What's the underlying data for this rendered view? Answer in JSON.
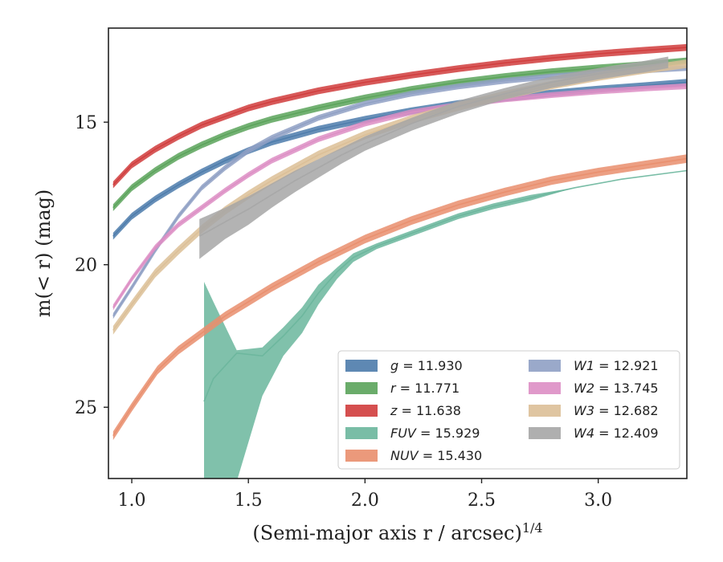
{
  "chart_data": {
    "type": "line",
    "title": "",
    "xlabel": "(Semi-major axis r / arcsec)^{1/4}",
    "ylabel": "m(< r) (mag)",
    "xlim": [
      0.9,
      3.38
    ],
    "ylim": [
      27.5,
      11.7
    ],
    "y_inverted": true,
    "x_ticks": [
      1.0,
      1.5,
      2.0,
      2.5,
      3.0
    ],
    "x_tick_labels": [
      "1.0",
      "1.5",
      "2.0",
      "2.5",
      "3.0"
    ],
    "y_ticks": [
      15,
      20,
      25
    ],
    "y_tick_labels": [
      "15",
      "20",
      "25"
    ],
    "grid": false,
    "legend_position": "lower-right",
    "series": [
      {
        "name": "g = 11.930",
        "label_var": "g",
        "label_val": "= 11.930",
        "color": "#4c7bab",
        "x": [
          0.92,
          1.0,
          1.1,
          1.2,
          1.3,
          1.4,
          1.5,
          1.6,
          1.8,
          2.0,
          2.2,
          2.4,
          2.6,
          2.8,
          3.0,
          3.2,
          3.38
        ],
        "y": [
          19.0,
          18.3,
          17.7,
          17.2,
          16.75,
          16.35,
          16.0,
          15.7,
          15.25,
          14.9,
          14.6,
          14.35,
          14.15,
          13.98,
          13.84,
          13.72,
          13.6
        ],
        "band": 0.12
      },
      {
        "name": "r = 11.771",
        "label_var": "r",
        "label_val": "= 11.771",
        "color": "#5aa35a",
        "x": [
          0.92,
          1.0,
          1.1,
          1.2,
          1.3,
          1.4,
          1.5,
          1.6,
          1.8,
          2.0,
          2.2,
          2.4,
          2.6,
          2.8,
          3.0,
          3.2,
          3.38
        ],
        "y": [
          18.0,
          17.3,
          16.7,
          16.2,
          15.8,
          15.45,
          15.15,
          14.9,
          14.5,
          14.15,
          13.85,
          13.6,
          13.4,
          13.23,
          13.1,
          12.98,
          12.85
        ],
        "band": 0.12
      },
      {
        "name": "z = 11.638",
        "label_var": "z",
        "label_val": "= 11.638",
        "color": "#d03c3c",
        "x": [
          0.92,
          1.0,
          1.1,
          1.2,
          1.3,
          1.4,
          1.5,
          1.6,
          1.8,
          2.0,
          2.2,
          2.4,
          2.6,
          2.8,
          3.0,
          3.2,
          3.38
        ],
        "y": [
          17.2,
          16.5,
          15.95,
          15.5,
          15.1,
          14.8,
          14.5,
          14.28,
          13.9,
          13.6,
          13.35,
          13.12,
          12.92,
          12.75,
          12.6,
          12.48,
          12.38
        ],
        "band": 0.12
      },
      {
        "name": "FUV = 15.929",
        "label_var": "FUV",
        "label_val": "= 15.929",
        "color": "#6ab69c",
        "x": [
          1.31,
          1.35,
          1.45,
          1.56,
          1.65,
          1.73,
          1.8,
          1.88,
          1.95,
          2.05,
          2.2,
          2.4,
          2.55,
          2.71,
          2.9,
          3.1,
          3.38
        ],
        "y": [
          24.8,
          24.0,
          23.1,
          23.2,
          22.5,
          21.8,
          21.0,
          20.25,
          19.75,
          19.35,
          18.9,
          18.3,
          17.95,
          17.65,
          17.3,
          17.0,
          16.7
        ],
        "band_upper": [
          20.6,
          21.3,
          23.0,
          22.9,
          22.2,
          21.5,
          20.7,
          20.1,
          19.6,
          19.25,
          18.8,
          18.2,
          17.85,
          17.55,
          17.3,
          17.0,
          16.7
        ],
        "band_lower": [
          27.6,
          27.6,
          27.6,
          24.6,
          23.2,
          22.4,
          21.4,
          20.5,
          19.9,
          19.45,
          19.0,
          18.4,
          18.05,
          17.75,
          17.3,
          17.0,
          16.7
        ]
      },
      {
        "name": "NUV = 15.430",
        "label_var": "NUV",
        "label_val": "= 15.430",
        "color": "#e98e6d",
        "x": [
          0.92,
          1.0,
          1.11,
          1.2,
          1.3,
          1.4,
          1.5,
          1.6,
          1.8,
          2.0,
          2.2,
          2.4,
          2.6,
          2.8,
          3.0,
          3.2,
          3.38
        ],
        "y": [
          26.0,
          25.0,
          23.7,
          23.0,
          22.4,
          21.8,
          21.3,
          20.8,
          19.9,
          19.1,
          18.45,
          17.9,
          17.45,
          17.05,
          16.75,
          16.5,
          16.28
        ],
        "band": 0.15
      },
      {
        "name": "W1 = 12.921",
        "label_var": "W1",
        "label_val": "= 12.921",
        "color": "#8fa0c4",
        "x": [
          0.92,
          1.0,
          1.1,
          1.2,
          1.3,
          1.4,
          1.5,
          1.6,
          1.8,
          2.0,
          2.2,
          2.4,
          2.6,
          2.8,
          3.0,
          3.2,
          3.38
        ],
        "y": [
          21.8,
          20.8,
          19.5,
          18.3,
          17.3,
          16.6,
          16.0,
          15.55,
          14.85,
          14.35,
          14.0,
          13.75,
          13.55,
          13.4,
          13.28,
          13.18,
          13.1
        ],
        "band": 0.1
      },
      {
        "name": "W2 = 13.745",
        "label_var": "W2",
        "label_val": "= 13.745",
        "color": "#dd8ec4",
        "x": [
          0.92,
          1.0,
          1.1,
          1.2,
          1.3,
          1.4,
          1.5,
          1.6,
          1.8,
          2.0,
          2.2,
          2.4,
          2.6,
          2.8,
          3.0,
          3.2,
          3.38
        ],
        "y": [
          21.5,
          20.5,
          19.4,
          18.6,
          18.0,
          17.4,
          16.85,
          16.35,
          15.6,
          15.05,
          14.65,
          14.4,
          14.2,
          14.05,
          13.92,
          13.82,
          13.74
        ],
        "band": 0.1
      },
      {
        "name": "W3 = 12.682",
        "label_var": "W3",
        "label_val": "= 12.682",
        "color": "#dcbf97",
        "x": [
          0.92,
          1.0,
          1.1,
          1.2,
          1.3,
          1.4,
          1.5,
          1.6,
          1.8,
          2.0,
          2.2,
          2.4,
          2.6,
          2.8,
          3.0,
          3.2,
          3.38
        ],
        "y": [
          22.3,
          21.4,
          20.3,
          19.5,
          18.75,
          18.1,
          17.55,
          17.05,
          16.15,
          15.45,
          14.9,
          14.45,
          14.05,
          13.7,
          13.4,
          13.15,
          12.95
        ],
        "band": 0.15
      },
      {
        "name": "W4 = 12.409",
        "label_var": "W4",
        "label_val": "= 12.409",
        "color": "#a6a6a6",
        "x": [
          1.29,
          1.4,
          1.5,
          1.6,
          1.7,
          1.8,
          1.9,
          2.0,
          2.2,
          2.4,
          2.6,
          2.8,
          3.0,
          3.2,
          3.3
        ],
        "y": [
          19.0,
          18.5,
          18.05,
          17.55,
          17.05,
          16.6,
          16.15,
          15.75,
          15.05,
          14.45,
          14.0,
          13.6,
          13.3,
          13.05,
          12.9
        ],
        "band_upper": [
          18.4,
          18.0,
          17.6,
          17.15,
          16.7,
          16.3,
          15.9,
          15.5,
          14.85,
          14.25,
          13.8,
          13.4,
          13.1,
          12.85,
          12.7
        ],
        "band_lower": [
          19.8,
          19.1,
          18.6,
          18.0,
          17.45,
          16.95,
          16.45,
          16.0,
          15.3,
          14.7,
          14.2,
          13.8,
          13.5,
          13.25,
          13.1
        ]
      }
    ]
  }
}
